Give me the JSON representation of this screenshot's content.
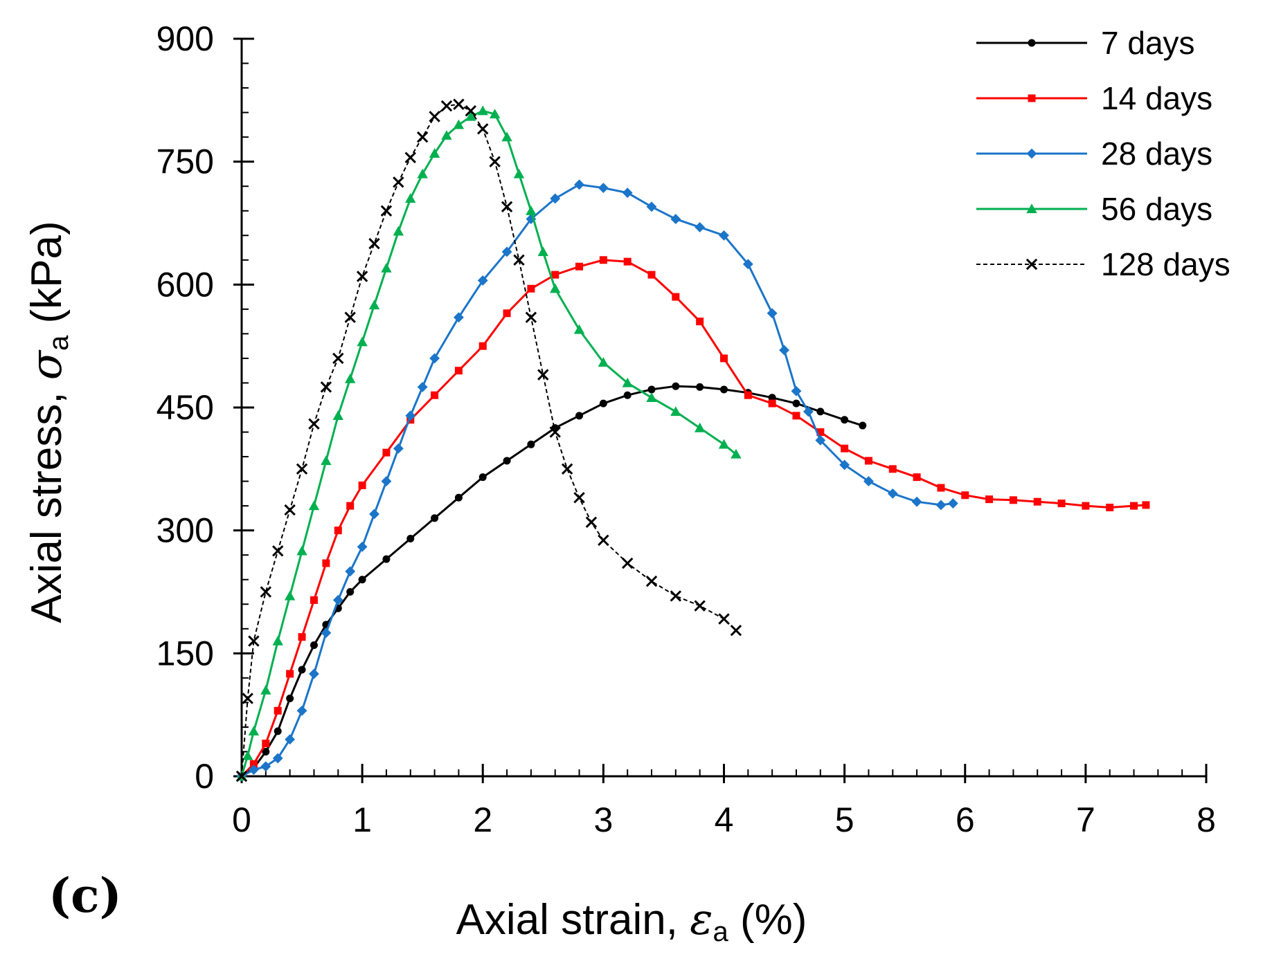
{
  "panel_label": "(c)",
  "chart_data": {
    "type": "line",
    "x_axis": {
      "title_prefix": "Axial strain, ",
      "symbol": "ε",
      "subscript": "a",
      "title_suffix": " (%)",
      "lim": [
        0,
        8
      ],
      "ticks": [
        0,
        1,
        2,
        3,
        4,
        5,
        6,
        7,
        8
      ],
      "minor_step": 0.2
    },
    "y_axis": {
      "title_prefix": "Axial stress, ",
      "symbol": "σ",
      "subscript": "a",
      "title_suffix": " (kPa)",
      "lim": [
        0,
        900
      ],
      "ticks": [
        0,
        150,
        300,
        450,
        600,
        750,
        900
      ],
      "minor_step": 30
    },
    "legend_position": "top-right",
    "series": [
      {
        "name": "7 days",
        "color": "#000000",
        "marker": "circle",
        "dash": "solid",
        "points": [
          [
            0,
            0
          ],
          [
            0.1,
            10
          ],
          [
            0.2,
            30
          ],
          [
            0.3,
            55
          ],
          [
            0.4,
            95
          ],
          [
            0.5,
            130
          ],
          [
            0.6,
            160
          ],
          [
            0.7,
            185
          ],
          [
            0.8,
            205
          ],
          [
            0.9,
            225
          ],
          [
            1.0,
            240
          ],
          [
            1.2,
            265
          ],
          [
            1.4,
            290
          ],
          [
            1.6,
            315
          ],
          [
            1.8,
            340
          ],
          [
            2.0,
            365
          ],
          [
            2.2,
            385
          ],
          [
            2.4,
            405
          ],
          [
            2.6,
            425
          ],
          [
            2.8,
            440
          ],
          [
            3.0,
            455
          ],
          [
            3.2,
            465
          ],
          [
            3.4,
            472
          ],
          [
            3.6,
            476
          ],
          [
            3.8,
            475
          ],
          [
            4.0,
            472
          ],
          [
            4.2,
            468
          ],
          [
            4.4,
            462
          ],
          [
            4.6,
            455
          ],
          [
            4.8,
            445
          ],
          [
            5.0,
            435
          ],
          [
            5.15,
            428
          ]
        ]
      },
      {
        "name": "14 days",
        "color": "#ff0000",
        "marker": "square",
        "dash": "solid",
        "points": [
          [
            0,
            0
          ],
          [
            0.1,
            15
          ],
          [
            0.2,
            40
          ],
          [
            0.3,
            80
          ],
          [
            0.4,
            125
          ],
          [
            0.5,
            170
          ],
          [
            0.6,
            215
          ],
          [
            0.7,
            260
          ],
          [
            0.8,
            300
          ],
          [
            0.9,
            330
          ],
          [
            1.0,
            355
          ],
          [
            1.2,
            395
          ],
          [
            1.4,
            435
          ],
          [
            1.6,
            465
          ],
          [
            1.8,
            495
          ],
          [
            2.0,
            525
          ],
          [
            2.2,
            565
          ],
          [
            2.4,
            595
          ],
          [
            2.6,
            612
          ],
          [
            2.8,
            622
          ],
          [
            3.0,
            630
          ],
          [
            3.2,
            628
          ],
          [
            3.4,
            612
          ],
          [
            3.6,
            585
          ],
          [
            3.8,
            555
          ],
          [
            4.0,
            510
          ],
          [
            4.2,
            465
          ],
          [
            4.4,
            455
          ],
          [
            4.6,
            440
          ],
          [
            4.8,
            420
          ],
          [
            5.0,
            400
          ],
          [
            5.2,
            385
          ],
          [
            5.4,
            375
          ],
          [
            5.6,
            365
          ],
          [
            5.8,
            352
          ],
          [
            6.0,
            343
          ],
          [
            6.2,
            338
          ],
          [
            6.4,
            337
          ],
          [
            6.6,
            335
          ],
          [
            6.8,
            333
          ],
          [
            7.0,
            330
          ],
          [
            7.2,
            328
          ],
          [
            7.4,
            330
          ],
          [
            7.5,
            331
          ]
        ]
      },
      {
        "name": "28 days",
        "color": "#1b75c9",
        "marker": "diamond",
        "dash": "solid",
        "points": [
          [
            0,
            0
          ],
          [
            0.1,
            8
          ],
          [
            0.2,
            12
          ],
          [
            0.3,
            22
          ],
          [
            0.4,
            45
          ],
          [
            0.5,
            80
          ],
          [
            0.6,
            125
          ],
          [
            0.7,
            175
          ],
          [
            0.8,
            215
          ],
          [
            0.9,
            250
          ],
          [
            1.0,
            280
          ],
          [
            1.1,
            320
          ],
          [
            1.2,
            360
          ],
          [
            1.3,
            400
          ],
          [
            1.4,
            440
          ],
          [
            1.5,
            475
          ],
          [
            1.6,
            510
          ],
          [
            1.8,
            560
          ],
          [
            2.0,
            605
          ],
          [
            2.2,
            640
          ],
          [
            2.4,
            680
          ],
          [
            2.6,
            705
          ],
          [
            2.8,
            722
          ],
          [
            3.0,
            718
          ],
          [
            3.2,
            712
          ],
          [
            3.4,
            695
          ],
          [
            3.6,
            680
          ],
          [
            3.8,
            670
          ],
          [
            4.0,
            660
          ],
          [
            4.2,
            625
          ],
          [
            4.4,
            565
          ],
          [
            4.5,
            520
          ],
          [
            4.6,
            470
          ],
          [
            4.7,
            445
          ],
          [
            4.8,
            410
          ],
          [
            5.0,
            380
          ],
          [
            5.2,
            360
          ],
          [
            5.4,
            345
          ],
          [
            5.6,
            335
          ],
          [
            5.8,
            331
          ],
          [
            5.9,
            333
          ]
        ]
      },
      {
        "name": "56 days",
        "color": "#00b050",
        "marker": "triangle",
        "dash": "solid",
        "points": [
          [
            0,
            0
          ],
          [
            0.05,
            25
          ],
          [
            0.1,
            55
          ],
          [
            0.2,
            105
          ],
          [
            0.3,
            165
          ],
          [
            0.4,
            220
          ],
          [
            0.5,
            275
          ],
          [
            0.6,
            330
          ],
          [
            0.7,
            385
          ],
          [
            0.8,
            440
          ],
          [
            0.9,
            485
          ],
          [
            1.0,
            530
          ],
          [
            1.1,
            575
          ],
          [
            1.2,
            620
          ],
          [
            1.3,
            665
          ],
          [
            1.4,
            705
          ],
          [
            1.5,
            735
          ],
          [
            1.6,
            760
          ],
          [
            1.7,
            782
          ],
          [
            1.8,
            795
          ],
          [
            1.9,
            805
          ],
          [
            2.0,
            812
          ],
          [
            2.1,
            808
          ],
          [
            2.2,
            780
          ],
          [
            2.3,
            735
          ],
          [
            2.4,
            690
          ],
          [
            2.5,
            640
          ],
          [
            2.6,
            595
          ],
          [
            2.8,
            545
          ],
          [
            3.0,
            505
          ],
          [
            3.2,
            480
          ],
          [
            3.4,
            462
          ],
          [
            3.6,
            445
          ],
          [
            3.8,
            425
          ],
          [
            4.0,
            405
          ],
          [
            4.1,
            393
          ]
        ]
      },
      {
        "name": "128 days",
        "color": "#000000",
        "marker": "x",
        "dash": "dashed",
        "points": [
          [
            0,
            0
          ],
          [
            0.05,
            95
          ],
          [
            0.1,
            165
          ],
          [
            0.2,
            225
          ],
          [
            0.3,
            275
          ],
          [
            0.4,
            325
          ],
          [
            0.5,
            375
          ],
          [
            0.6,
            430
          ],
          [
            0.7,
            475
          ],
          [
            0.8,
            510
          ],
          [
            0.9,
            560
          ],
          [
            1.0,
            610
          ],
          [
            1.1,
            650
          ],
          [
            1.2,
            690
          ],
          [
            1.3,
            725
          ],
          [
            1.4,
            755
          ],
          [
            1.5,
            780
          ],
          [
            1.6,
            805
          ],
          [
            1.7,
            818
          ],
          [
            1.8,
            820
          ],
          [
            1.9,
            812
          ],
          [
            2.0,
            790
          ],
          [
            2.1,
            750
          ],
          [
            2.2,
            695
          ],
          [
            2.3,
            630
          ],
          [
            2.4,
            560
          ],
          [
            2.5,
            490
          ],
          [
            2.6,
            420
          ],
          [
            2.7,
            375
          ],
          [
            2.8,
            340
          ],
          [
            2.9,
            310
          ],
          [
            3.0,
            288
          ],
          [
            3.2,
            260
          ],
          [
            3.4,
            238
          ],
          [
            3.6,
            220
          ],
          [
            3.8,
            208
          ],
          [
            4.0,
            192
          ],
          [
            4.1,
            178
          ]
        ]
      }
    ]
  }
}
